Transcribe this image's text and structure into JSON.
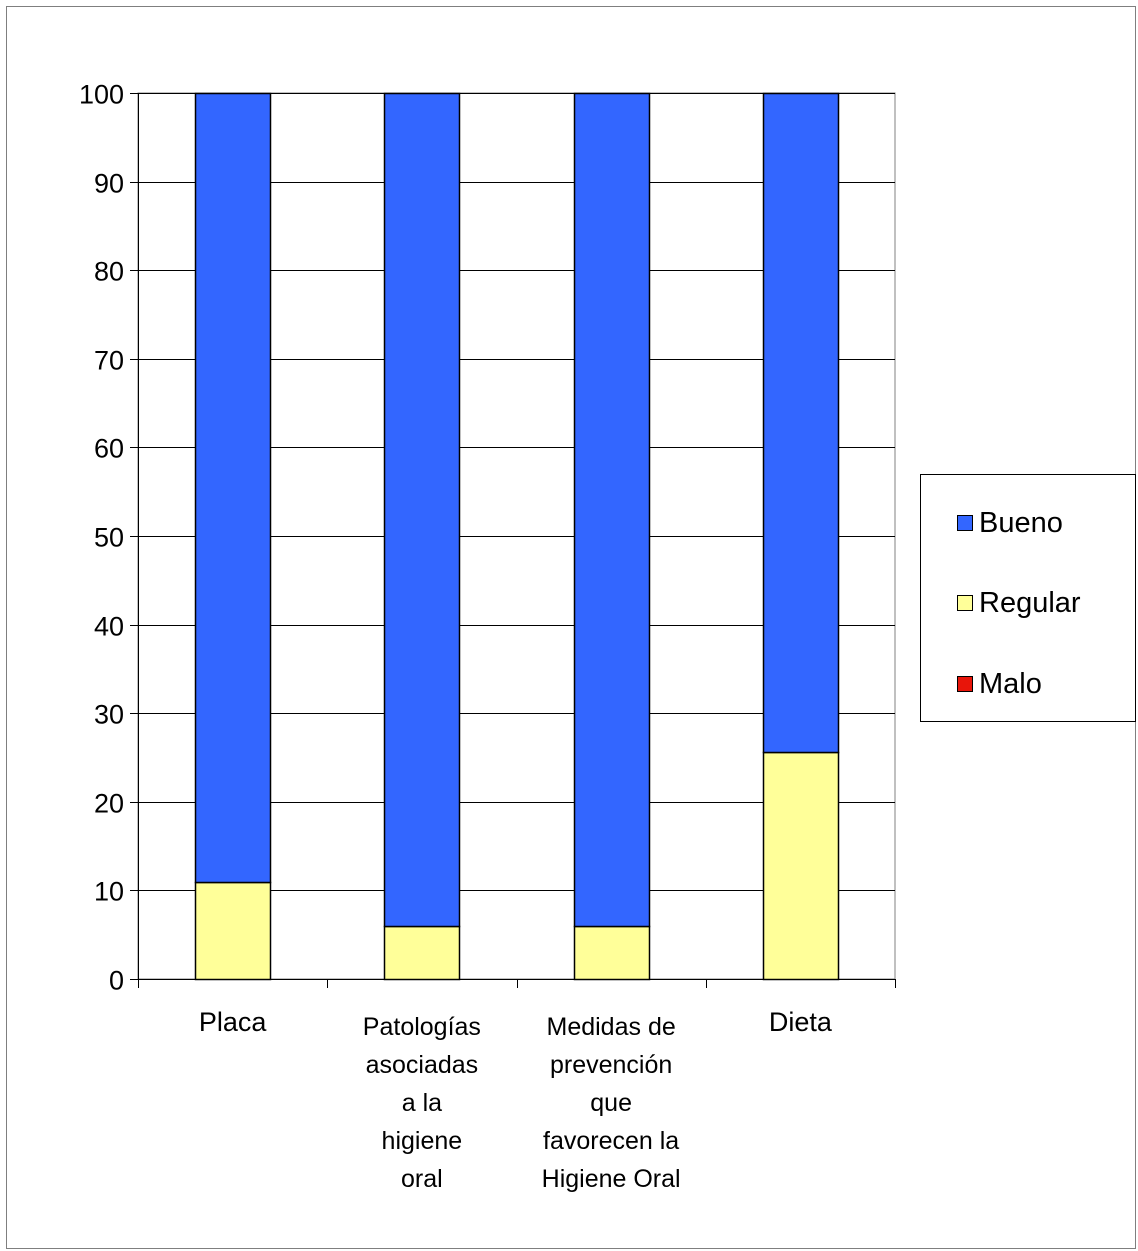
{
  "chart_data": {
    "type": "bar",
    "stacked": true,
    "title": "",
    "xlabel": "",
    "ylabel": "",
    "ylim": [
      0,
      100
    ],
    "yticks": [
      0,
      10,
      20,
      30,
      40,
      50,
      60,
      70,
      80,
      90,
      100
    ],
    "grid": "horizontal",
    "legend_position": "right",
    "categories": [
      [
        "Placa"
      ],
      [
        "Patologías",
        "asociadas",
        "a la",
        "higiene",
        "oral"
      ],
      [
        "Medidas de",
        "prevención",
        "que",
        "favorecen la",
        "Higiene Oral"
      ],
      [
        "Dieta"
      ]
    ],
    "series": [
      {
        "name": "Malo",
        "color": "#e8150a",
        "values": [
          0,
          0,
          0,
          0
        ]
      },
      {
        "name": "Regular",
        "color": "#ffff99",
        "values": [
          11,
          6,
          6,
          25.6
        ]
      },
      {
        "name": "Bueno",
        "color": "#3366ff",
        "values": [
          89,
          94,
          94,
          74.4
        ]
      }
    ],
    "legend_order": [
      "Bueno",
      "Regular",
      "Malo"
    ]
  }
}
